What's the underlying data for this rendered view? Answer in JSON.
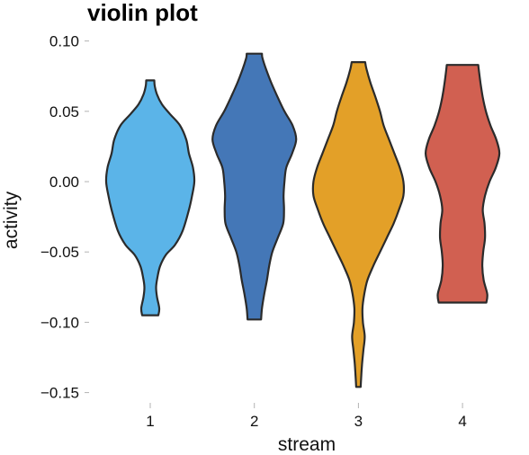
{
  "chart_data": {
    "type": "violin",
    "title": "violin plot",
    "xlabel": "stream",
    "ylabel": "activity",
    "categories": [
      "1",
      "2",
      "3",
      "4"
    ],
    "ylim": [
      -0.155,
      0.103
    ],
    "y_ticks": [
      0.1,
      0.05,
      0.0,
      -0.05,
      -0.1,
      -0.15
    ],
    "y_tick_labels": [
      "0.10",
      "0.05",
      "0.00",
      "−0.05",
      "−0.10",
      "−0.15"
    ],
    "grid": false,
    "legend": "none",
    "colors": [
      "#5bb4e8",
      "#4477b7",
      "#e3a028",
      "#d16051"
    ],
    "series": [
      {
        "category": "1",
        "min": -0.095,
        "max": 0.072,
        "density": [
          [
            -0.095,
            0.18
          ],
          [
            -0.09,
            0.2
          ],
          [
            -0.082,
            0.15
          ],
          [
            -0.075,
            0.13
          ],
          [
            -0.068,
            0.16
          ],
          [
            -0.06,
            0.22
          ],
          [
            -0.052,
            0.35
          ],
          [
            -0.045,
            0.55
          ],
          [
            -0.035,
            0.72
          ],
          [
            -0.02,
            0.86
          ],
          [
            -0.01,
            0.93
          ],
          [
            0.0,
            0.98
          ],
          [
            0.01,
            0.95
          ],
          [
            0.02,
            0.86
          ],
          [
            0.03,
            0.8
          ],
          [
            0.04,
            0.66
          ],
          [
            0.048,
            0.44
          ],
          [
            0.055,
            0.26
          ],
          [
            0.062,
            0.15
          ],
          [
            0.068,
            0.1
          ],
          [
            0.072,
            0.09
          ]
        ]
      },
      {
        "category": "2",
        "min": -0.098,
        "max": 0.091,
        "density": [
          [
            -0.098,
            0.15
          ],
          [
            -0.09,
            0.17
          ],
          [
            -0.08,
            0.22
          ],
          [
            -0.07,
            0.28
          ],
          [
            -0.06,
            0.33
          ],
          [
            -0.05,
            0.4
          ],
          [
            -0.04,
            0.52
          ],
          [
            -0.03,
            0.64
          ],
          [
            -0.02,
            0.66
          ],
          [
            -0.01,
            0.65
          ],
          [
            0.0,
            0.67
          ],
          [
            0.01,
            0.71
          ],
          [
            0.02,
            0.84
          ],
          [
            0.03,
            0.93
          ],
          [
            0.04,
            0.85
          ],
          [
            0.05,
            0.67
          ],
          [
            0.06,
            0.52
          ],
          [
            0.07,
            0.38
          ],
          [
            0.08,
            0.26
          ],
          [
            0.088,
            0.18
          ],
          [
            0.091,
            0.17
          ]
        ]
      },
      {
        "category": "3",
        "min": -0.146,
        "max": 0.085,
        "density": [
          [
            -0.146,
            0.05
          ],
          [
            -0.14,
            0.06
          ],
          [
            -0.13,
            0.08
          ],
          [
            -0.12,
            0.11
          ],
          [
            -0.11,
            0.14
          ],
          [
            -0.1,
            0.1
          ],
          [
            -0.09,
            0.09
          ],
          [
            -0.08,
            0.13
          ],
          [
            -0.07,
            0.2
          ],
          [
            -0.06,
            0.33
          ],
          [
            -0.05,
            0.48
          ],
          [
            -0.04,
            0.63
          ],
          [
            -0.03,
            0.78
          ],
          [
            -0.02,
            0.9
          ],
          [
            -0.01,
            1.0
          ],
          [
            0.0,
            1.0
          ],
          [
            0.01,
            0.92
          ],
          [
            0.02,
            0.8
          ],
          [
            0.03,
            0.68
          ],
          [
            0.04,
            0.56
          ],
          [
            0.05,
            0.48
          ],
          [
            0.06,
            0.38
          ],
          [
            0.07,
            0.27
          ],
          [
            0.08,
            0.18
          ],
          [
            0.085,
            0.15
          ]
        ]
      },
      {
        "category": "4",
        "min": -0.086,
        "max": 0.083,
        "density": [
          [
            -0.086,
            0.53
          ],
          [
            -0.08,
            0.55
          ],
          [
            -0.07,
            0.47
          ],
          [
            -0.06,
            0.44
          ],
          [
            -0.05,
            0.46
          ],
          [
            -0.04,
            0.5
          ],
          [
            -0.03,
            0.49
          ],
          [
            -0.02,
            0.45
          ],
          [
            -0.01,
            0.5
          ],
          [
            0.0,
            0.6
          ],
          [
            0.01,
            0.74
          ],
          [
            0.02,
            0.82
          ],
          [
            0.03,
            0.75
          ],
          [
            0.04,
            0.62
          ],
          [
            0.05,
            0.52
          ],
          [
            0.06,
            0.45
          ],
          [
            0.07,
            0.4
          ],
          [
            0.08,
            0.36
          ],
          [
            0.083,
            0.35
          ]
        ]
      }
    ]
  }
}
